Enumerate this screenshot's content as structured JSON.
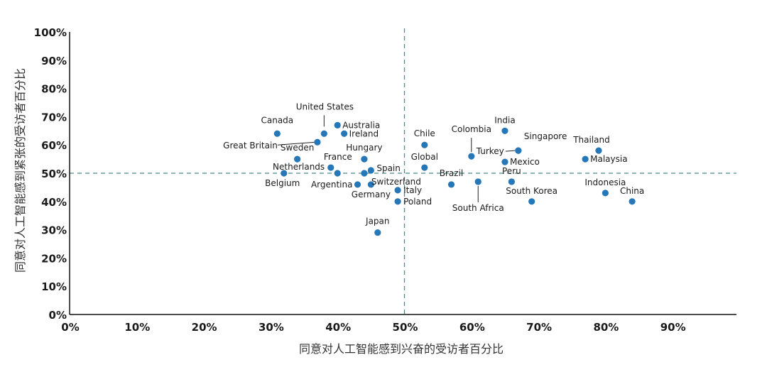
{
  "chart_data": {
    "type": "scatter",
    "xlabel": "同意对人工智能感到兴奋的受访者百分比",
    "ylabel": "同意对人工智能感到紧张的受访者百分比",
    "xlim": [
      0,
      100
    ],
    "ylim": [
      0,
      100
    ],
    "x_ticks": [
      "0%",
      "10%",
      "20%",
      "30%",
      "40%",
      "50%",
      "60%",
      "70%",
      "80%",
      "90%"
    ],
    "y_ticks": [
      "0%",
      "10%",
      "20%",
      "30%",
      "40%",
      "50%",
      "60%",
      "70%",
      "80%",
      "90%",
      "100%"
    ],
    "reference_lines": {
      "x": 50,
      "y": 50
    },
    "point_color": "#2577b8",
    "ref_line_color": "#4a8a88",
    "points": [
      {
        "name": "Canada",
        "x": 31,
        "y": 64
      },
      {
        "name": "United States",
        "x": 38,
        "y": 64
      },
      {
        "name": "Great Britain",
        "x": 37,
        "y": 61
      },
      {
        "name": "Australia",
        "x": 40,
        "y": 67
      },
      {
        "name": "Ireland",
        "x": 41,
        "y": 64
      },
      {
        "name": "Sweden",
        "x": 34,
        "y": 55
      },
      {
        "name": "Hungary",
        "x": 44,
        "y": 55
      },
      {
        "name": "France",
        "x": 39,
        "y": 52
      },
      {
        "name": "Netherlands",
        "x": 40,
        "y": 50
      },
      {
        "name": "Belgium",
        "x": 32,
        "y": 50
      },
      {
        "name": "Spain",
        "x": 45,
        "y": 51
      },
      {
        "name": "Argentina",
        "x": 43,
        "y": 46
      },
      {
        "name": "Switzerland",
        "x": 44,
        "y": 50
      },
      {
        "name": "Germany",
        "x": 45,
        "y": 46
      },
      {
        "name": "Italy",
        "x": 49,
        "y": 44
      },
      {
        "name": "Poland",
        "x": 49,
        "y": 40
      },
      {
        "name": "Japan",
        "x": 46,
        "y": 29
      },
      {
        "name": "Chile",
        "x": 53,
        "y": 60
      },
      {
        "name": "Global",
        "x": 53,
        "y": 52
      },
      {
        "name": "Brazil",
        "x": 57,
        "y": 46
      },
      {
        "name": "South Africa",
        "x": 61,
        "y": 47
      },
      {
        "name": "Colombia",
        "x": 60,
        "y": 56
      },
      {
        "name": "India",
        "x": 65,
        "y": 65
      },
      {
        "name": "Turkey",
        "x": 67,
        "y": 58
      },
      {
        "name": "Singapore",
        "x": 67,
        "y": 58
      },
      {
        "name": "Mexico",
        "x": 65,
        "y": 54
      },
      {
        "name": "Peru",
        "x": 66,
        "y": 47
      },
      {
        "name": "South Korea",
        "x": 69,
        "y": 40
      },
      {
        "name": "Thailand",
        "x": 79,
        "y": 58
      },
      {
        "name": "Malaysia",
        "x": 77,
        "y": 55
      },
      {
        "name": "Indonesia",
        "x": 80,
        "y": 43
      },
      {
        "name": "China",
        "x": 84,
        "y": 40
      }
    ]
  }
}
